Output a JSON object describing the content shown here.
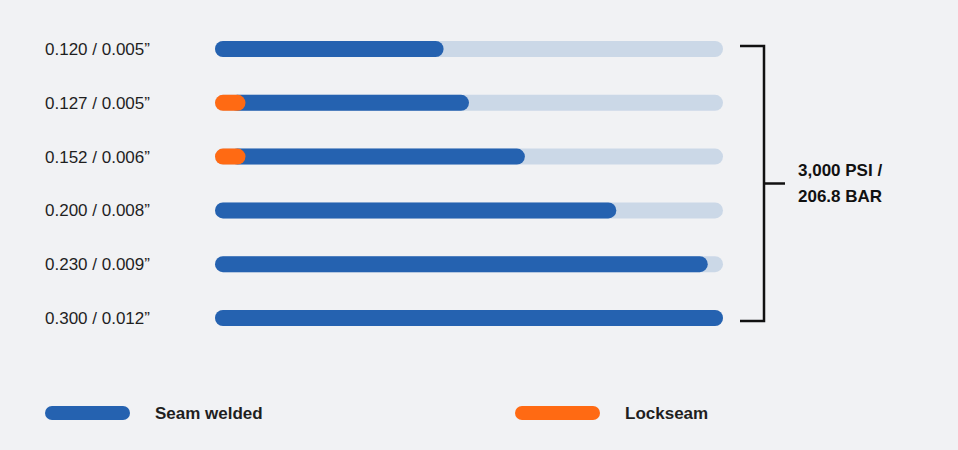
{
  "chart_data": {
    "type": "bar",
    "orientation": "horizontal",
    "stacked": true,
    "categories": [
      "0.120 / 0.005”",
      "0.127 / 0.005”",
      "0.152 / 0.006”",
      "0.200 / 0.008”",
      "0.230 / 0.009”",
      "0.300 / 0.012”"
    ],
    "series": [
      {
        "name": "Seam welded",
        "color": "#2562b0",
        "values": [
          45,
          44,
          55,
          79,
          97,
          100
        ]
      },
      {
        "name": "Lockseam",
        "color": "#ff6a13",
        "values": [
          null,
          6,
          6,
          null,
          null,
          null
        ]
      }
    ],
    "xlim": [
      0,
      100
    ],
    "tick_labels": false,
    "legend": "bottom",
    "annotation_lines": [
      "3,000 PSI /",
      "206.8 BAR"
    ]
  }
}
